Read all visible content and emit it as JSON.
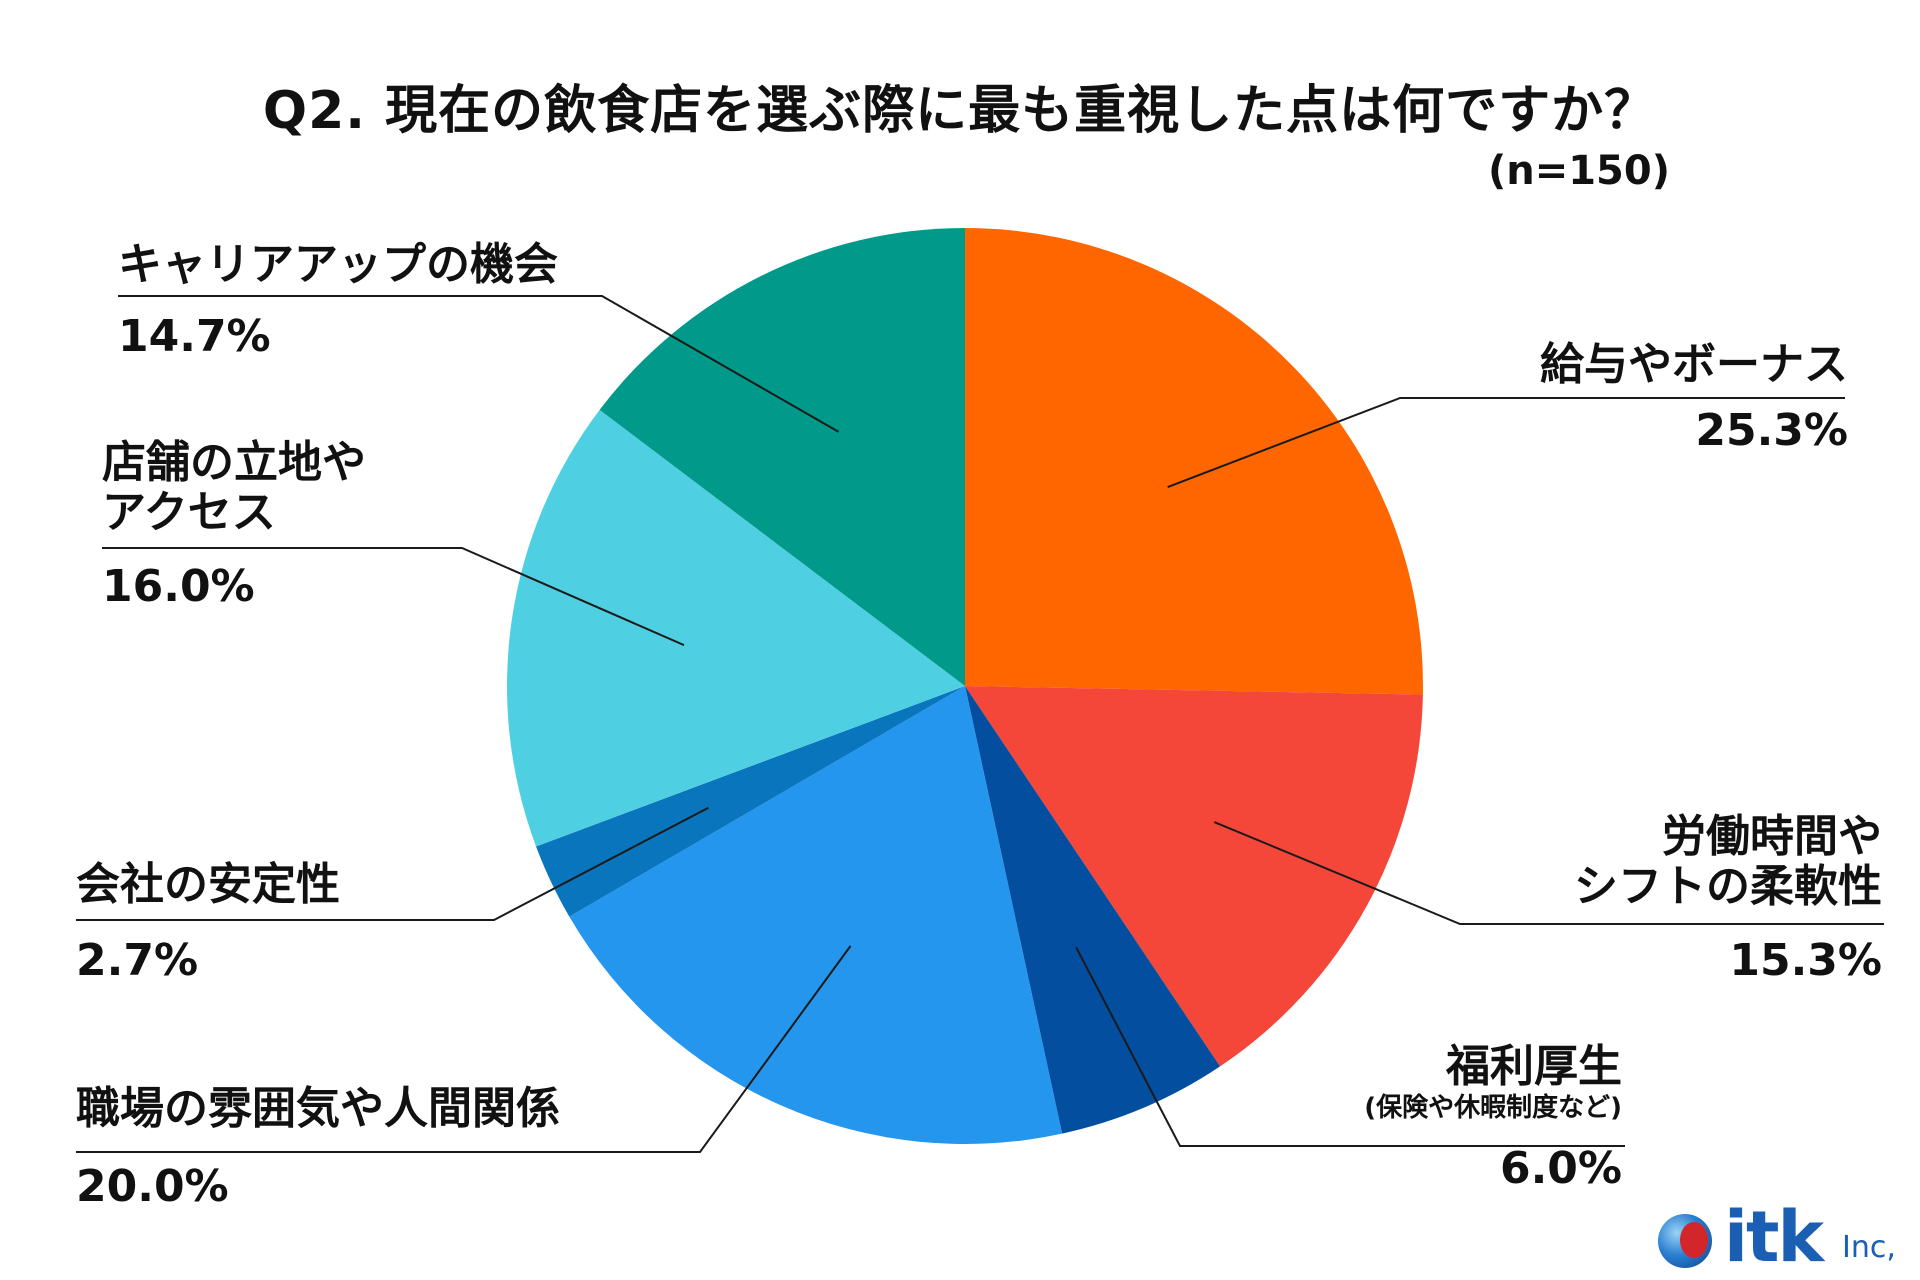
{
  "title": "Q2. 現在の飲食店を選ぶ際に最も重視した点は何ですか？",
  "sample_size": "(n=150)",
  "logo": {
    "word": "itk",
    "suffix": "Inc,"
  },
  "chart_data": {
    "type": "pie",
    "title": "Q2. 現在の飲食店を選ぶ際に最も重視した点は何ですか？",
    "slices": [
      {
        "label": "給与やボーナス",
        "value": 25.3,
        "value_label": "25.3%",
        "color": "#ff6600"
      },
      {
        "label": "労働時間やシフトの柔軟性",
        "value": 15.3,
        "value_label": "15.3%",
        "color": "#f4473a"
      },
      {
        "label": "福利厚生",
        "sublabel": "(保険や休暇制度など)",
        "value": 6.0,
        "value_label": "6.0%",
        "color": "#034e9e"
      },
      {
        "label": "職場の雰囲気や人間関係",
        "value": 20.0,
        "value_label": "20.0%",
        "color": "#2596ee"
      },
      {
        "label": "会社の安定性",
        "value": 2.7,
        "value_label": "2.7%",
        "color": "#0875bd"
      },
      {
        "label": "店舗の立地やアクセス",
        "value": 16.0,
        "value_label": "16.0%",
        "color": "#4fd0e2"
      },
      {
        "label": "キャリアアップの機会",
        "value": 14.7,
        "value_label": "14.7%",
        "color": "#019a8a"
      }
    ],
    "display_labels": [
      {
        "lines": [
          "給与やボーナス"
        ]
      },
      {
        "lines": [
          "労働時間や",
          "シフトの柔軟性"
        ]
      },
      {
        "lines": [
          "福利厚生"
        ]
      },
      {
        "lines": [
          "職場の雰囲気や人間関係"
        ]
      },
      {
        "lines": [
          "会社の安定性"
        ]
      },
      {
        "lines": [
          "店舗の立地や",
          "アクセス"
        ]
      },
      {
        "lines": [
          "キャリアアップの機会"
        ]
      }
    ],
    "start": "12 o'clock",
    "direction": "clockwise",
    "legend": "none"
  }
}
